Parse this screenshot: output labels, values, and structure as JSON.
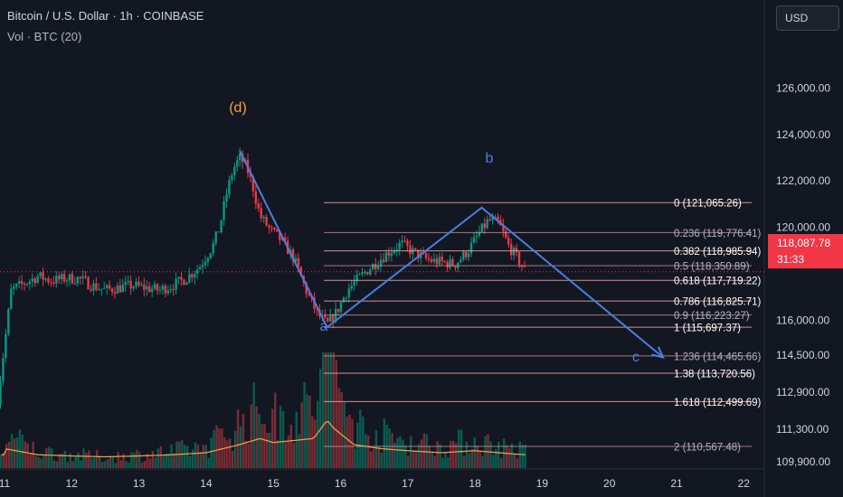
{
  "header": {
    "title": "Bitcoin / U.S. Dollar · 1h · COINBASE",
    "volume_label": "Vol · BTC (20)",
    "currency_button": "USD"
  },
  "price_axis": {
    "ticks": [
      {
        "value": 126000,
        "label": "126,000.00"
      },
      {
        "value": 124000,
        "label": "124,000.00"
      },
      {
        "value": 122000,
        "label": "122,000.00"
      },
      {
        "value": 120000,
        "label": "120,000.00"
      },
      {
        "value": 116000,
        "label": "116,000.00"
      },
      {
        "value": 114500,
        "label": "114,500.00"
      },
      {
        "value": 112900,
        "label": "112,900.00"
      },
      {
        "value": 111300,
        "label": "111,300.00"
      },
      {
        "value": 109900,
        "label": "109,900.00"
      }
    ]
  },
  "current_price": {
    "price": "118,087.78",
    "countdown": "31:33",
    "value": 118087.78
  },
  "time_axis": {
    "ticks": [
      {
        "day": 11,
        "label": "11"
      },
      {
        "day": 12,
        "label": "12"
      },
      {
        "day": 13,
        "label": "13"
      },
      {
        "day": 14,
        "label": "14"
      },
      {
        "day": 15,
        "label": "15"
      },
      {
        "day": 16,
        "label": "16"
      },
      {
        "day": 17,
        "label": "17"
      },
      {
        "day": 18,
        "label": "18"
      },
      {
        "day": 19,
        "label": "19"
      },
      {
        "day": 20,
        "label": "20"
      },
      {
        "day": 21,
        "label": "21"
      },
      {
        "day": 22,
        "label": "22"
      }
    ]
  },
  "fib_levels": [
    {
      "label": "0 (121,065.26)",
      "value": 121065.26,
      "emph": true
    },
    {
      "label": "0.236 (119,776.41)",
      "value": 119776.41,
      "emph": false
    },
    {
      "label": "0.382 (118,985.94)",
      "value": 118985.94,
      "emph": true
    },
    {
      "label": "0.5 (118,350.89)",
      "value": 118350.89,
      "emph": false
    },
    {
      "label": "0.618 (117,719.22)",
      "value": 117719.22,
      "emph": true
    },
    {
      "label": "0.786 (116,825.71)",
      "value": 116825.71,
      "emph": true
    },
    {
      "label": "0.9 (116,223.27)",
      "value": 116223.27,
      "emph": false
    },
    {
      "label": "1 (115,697.37)",
      "value": 115697.37,
      "emph": true
    },
    {
      "label": "1.236 (114,465.66)",
      "value": 114465.66,
      "emph": false
    },
    {
      "label": "1.38 (113,720.56)",
      "value": 113720.56,
      "emph": true
    },
    {
      "label": "1.618 (112,499.69)",
      "value": 112499.69,
      "emph": true
    },
    {
      "label": "2 (110,567.48)",
      "value": 110567.48,
      "emph": false
    }
  ],
  "wave_labels": {
    "d": "(d)",
    "a": "a",
    "b": "b",
    "c": "c"
  },
  "wave_points": [
    {
      "day": 14.5,
      "price": 123300
    },
    {
      "day": 15.8,
      "price": 115700
    },
    {
      "day": 18.1,
      "price": 120850
    },
    {
      "day": 20.8,
      "price": 114400
    }
  ],
  "colors": {
    "background": "#131722",
    "bull": "#089981",
    "bear": "#f23645",
    "wave": "#4a7fe0",
    "d_label": "#f7a14a",
    "fib_line": "#e8a0a0",
    "volume_ma": "#f7a14a"
  },
  "candle_series": [
    [
      10.9,
      112600
    ],
    [
      11.1,
      117300
    ],
    [
      11.3,
      117600
    ],
    [
      11.5,
      117900
    ],
    [
      11.7,
      117700
    ],
    [
      11.9,
      117800
    ],
    [
      12.1,
      117800
    ],
    [
      12.3,
      117500
    ],
    [
      12.5,
      117300
    ],
    [
      12.7,
      117400
    ],
    [
      12.9,
      117500
    ],
    [
      13.1,
      117400
    ],
    [
      13.3,
      117300
    ],
    [
      13.5,
      117500
    ],
    [
      13.7,
      117800
    ],
    [
      13.9,
      118300
    ],
    [
      14.1,
      119200
    ],
    [
      14.2,
      120000
    ],
    [
      14.3,
      121400
    ],
    [
      14.4,
      122500
    ],
    [
      14.5,
      123000
    ],
    [
      14.6,
      122600
    ],
    [
      14.7,
      121700
    ],
    [
      14.8,
      120500
    ],
    [
      14.95,
      119900
    ],
    [
      15.1,
      119500
    ],
    [
      15.3,
      118700
    ],
    [
      15.5,
      117200
    ],
    [
      15.65,
      116300
    ],
    [
      15.8,
      115800
    ],
    [
      15.95,
      116400
    ],
    [
      16.1,
      117300
    ],
    [
      16.3,
      117900
    ],
    [
      16.5,
      118400
    ],
    [
      16.7,
      118900
    ],
    [
      16.9,
      119300
    ],
    [
      17.1,
      118900
    ],
    [
      17.3,
      118600
    ],
    [
      17.5,
      118500
    ],
    [
      17.7,
      118400
    ],
    [
      17.9,
      119000
    ],
    [
      18.05,
      119700
    ],
    [
      18.2,
      120300
    ],
    [
      18.35,
      120200
    ],
    [
      18.5,
      119200
    ],
    [
      18.6,
      118800
    ],
    [
      18.75,
      118100
    ]
  ],
  "volume_series": [
    [
      11.0,
      0.3
    ],
    [
      11.5,
      0.15
    ],
    [
      12.0,
      0.12
    ],
    [
      12.5,
      0.1
    ],
    [
      13.0,
      0.12
    ],
    [
      13.5,
      0.15
    ],
    [
      14.0,
      0.2
    ],
    [
      14.5,
      0.4
    ],
    [
      14.8,
      0.55
    ],
    [
      15.0,
      0.45
    ],
    [
      15.3,
      0.5
    ],
    [
      15.6,
      0.55
    ],
    [
      15.8,
      1.0
    ],
    [
      15.9,
      0.8
    ],
    [
      16.2,
      0.4
    ],
    [
      16.6,
      0.3
    ],
    [
      17.0,
      0.25
    ],
    [
      17.5,
      0.2
    ],
    [
      18.0,
      0.25
    ],
    [
      18.5,
      0.18
    ],
    [
      18.75,
      0.15
    ]
  ]
}
